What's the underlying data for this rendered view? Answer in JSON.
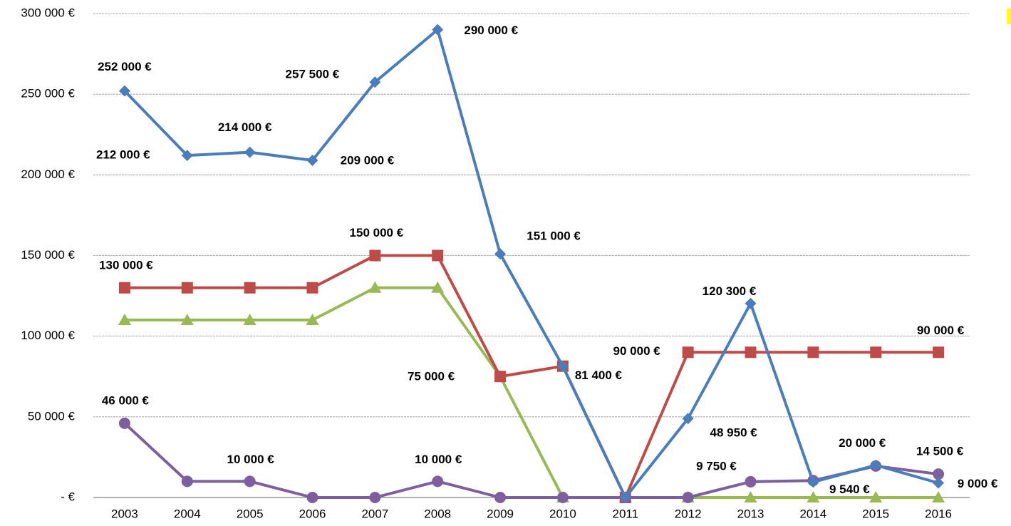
{
  "chart_data": {
    "type": "line",
    "categories": [
      "2003",
      "2004",
      "2005",
      "2006",
      "2007",
      "2008",
      "2009",
      "2010",
      "2011",
      "2012",
      "2013",
      "2014",
      "2015",
      "2016"
    ],
    "ylim": [
      0,
      300000
    ],
    "yticks": [
      {
        "value": 0,
        "label": "-   €"
      },
      {
        "value": 50000,
        "label": "50 000 €"
      },
      {
        "value": 100000,
        "label": "100 000 €"
      },
      {
        "value": 150000,
        "label": "150 000 €"
      },
      {
        "value": 200000,
        "label": "200 000 €"
      },
      {
        "value": 250000,
        "label": "250 000 €"
      },
      {
        "value": 300000,
        "label": "300 000 €"
      }
    ],
    "grid": true,
    "series": [
      {
        "color": "#4a7ebb",
        "marker": "diamond",
        "values": [
          252000,
          212000,
          214000,
          209000,
          257500,
          290000,
          151000,
          81400,
          0,
          48950,
          120300,
          9540,
          20000,
          9000
        ],
        "value_labels": [
          "252 000 €",
          "212 000 €",
          "214 000 €",
          "209 000 €",
          "257 500 €",
          "290 000 €",
          "151 000 €",
          "81 400 €",
          null,
          "48 950 €",
          "120 300 €",
          "9 540 €",
          "20 000 €",
          "9 000 €"
        ]
      },
      {
        "color": "#be4b48",
        "marker": "square",
        "values": [
          130000,
          130000,
          130000,
          130000,
          150000,
          150000,
          75000,
          81400,
          0,
          90000,
          90000,
          90000,
          90000,
          90000
        ],
        "value_labels": [
          "130 000 €",
          null,
          null,
          null,
          "150 000 €",
          null,
          "75 000 €",
          null,
          null,
          "90 000 €",
          null,
          null,
          null,
          "90 000 €"
        ]
      },
      {
        "color": "#98b954",
        "marker": "triangle",
        "values": [
          110000,
          110000,
          110000,
          110000,
          130000,
          130000,
          75000,
          0,
          0,
          0,
          0,
          0,
          0,
          0
        ]
      },
      {
        "color": "#7d5fa0",
        "marker": "circle",
        "values": [
          46000,
          10000,
          10000,
          0,
          0,
          10000,
          0,
          0,
          0,
          0,
          9750,
          10500,
          19500,
          14500
        ],
        "value_labels": [
          "46 000 €",
          null,
          "10 000 €",
          null,
          null,
          "10 000 €",
          null,
          null,
          null,
          null,
          "9 750 €",
          null,
          null,
          "14 500 €"
        ]
      }
    ]
  }
}
